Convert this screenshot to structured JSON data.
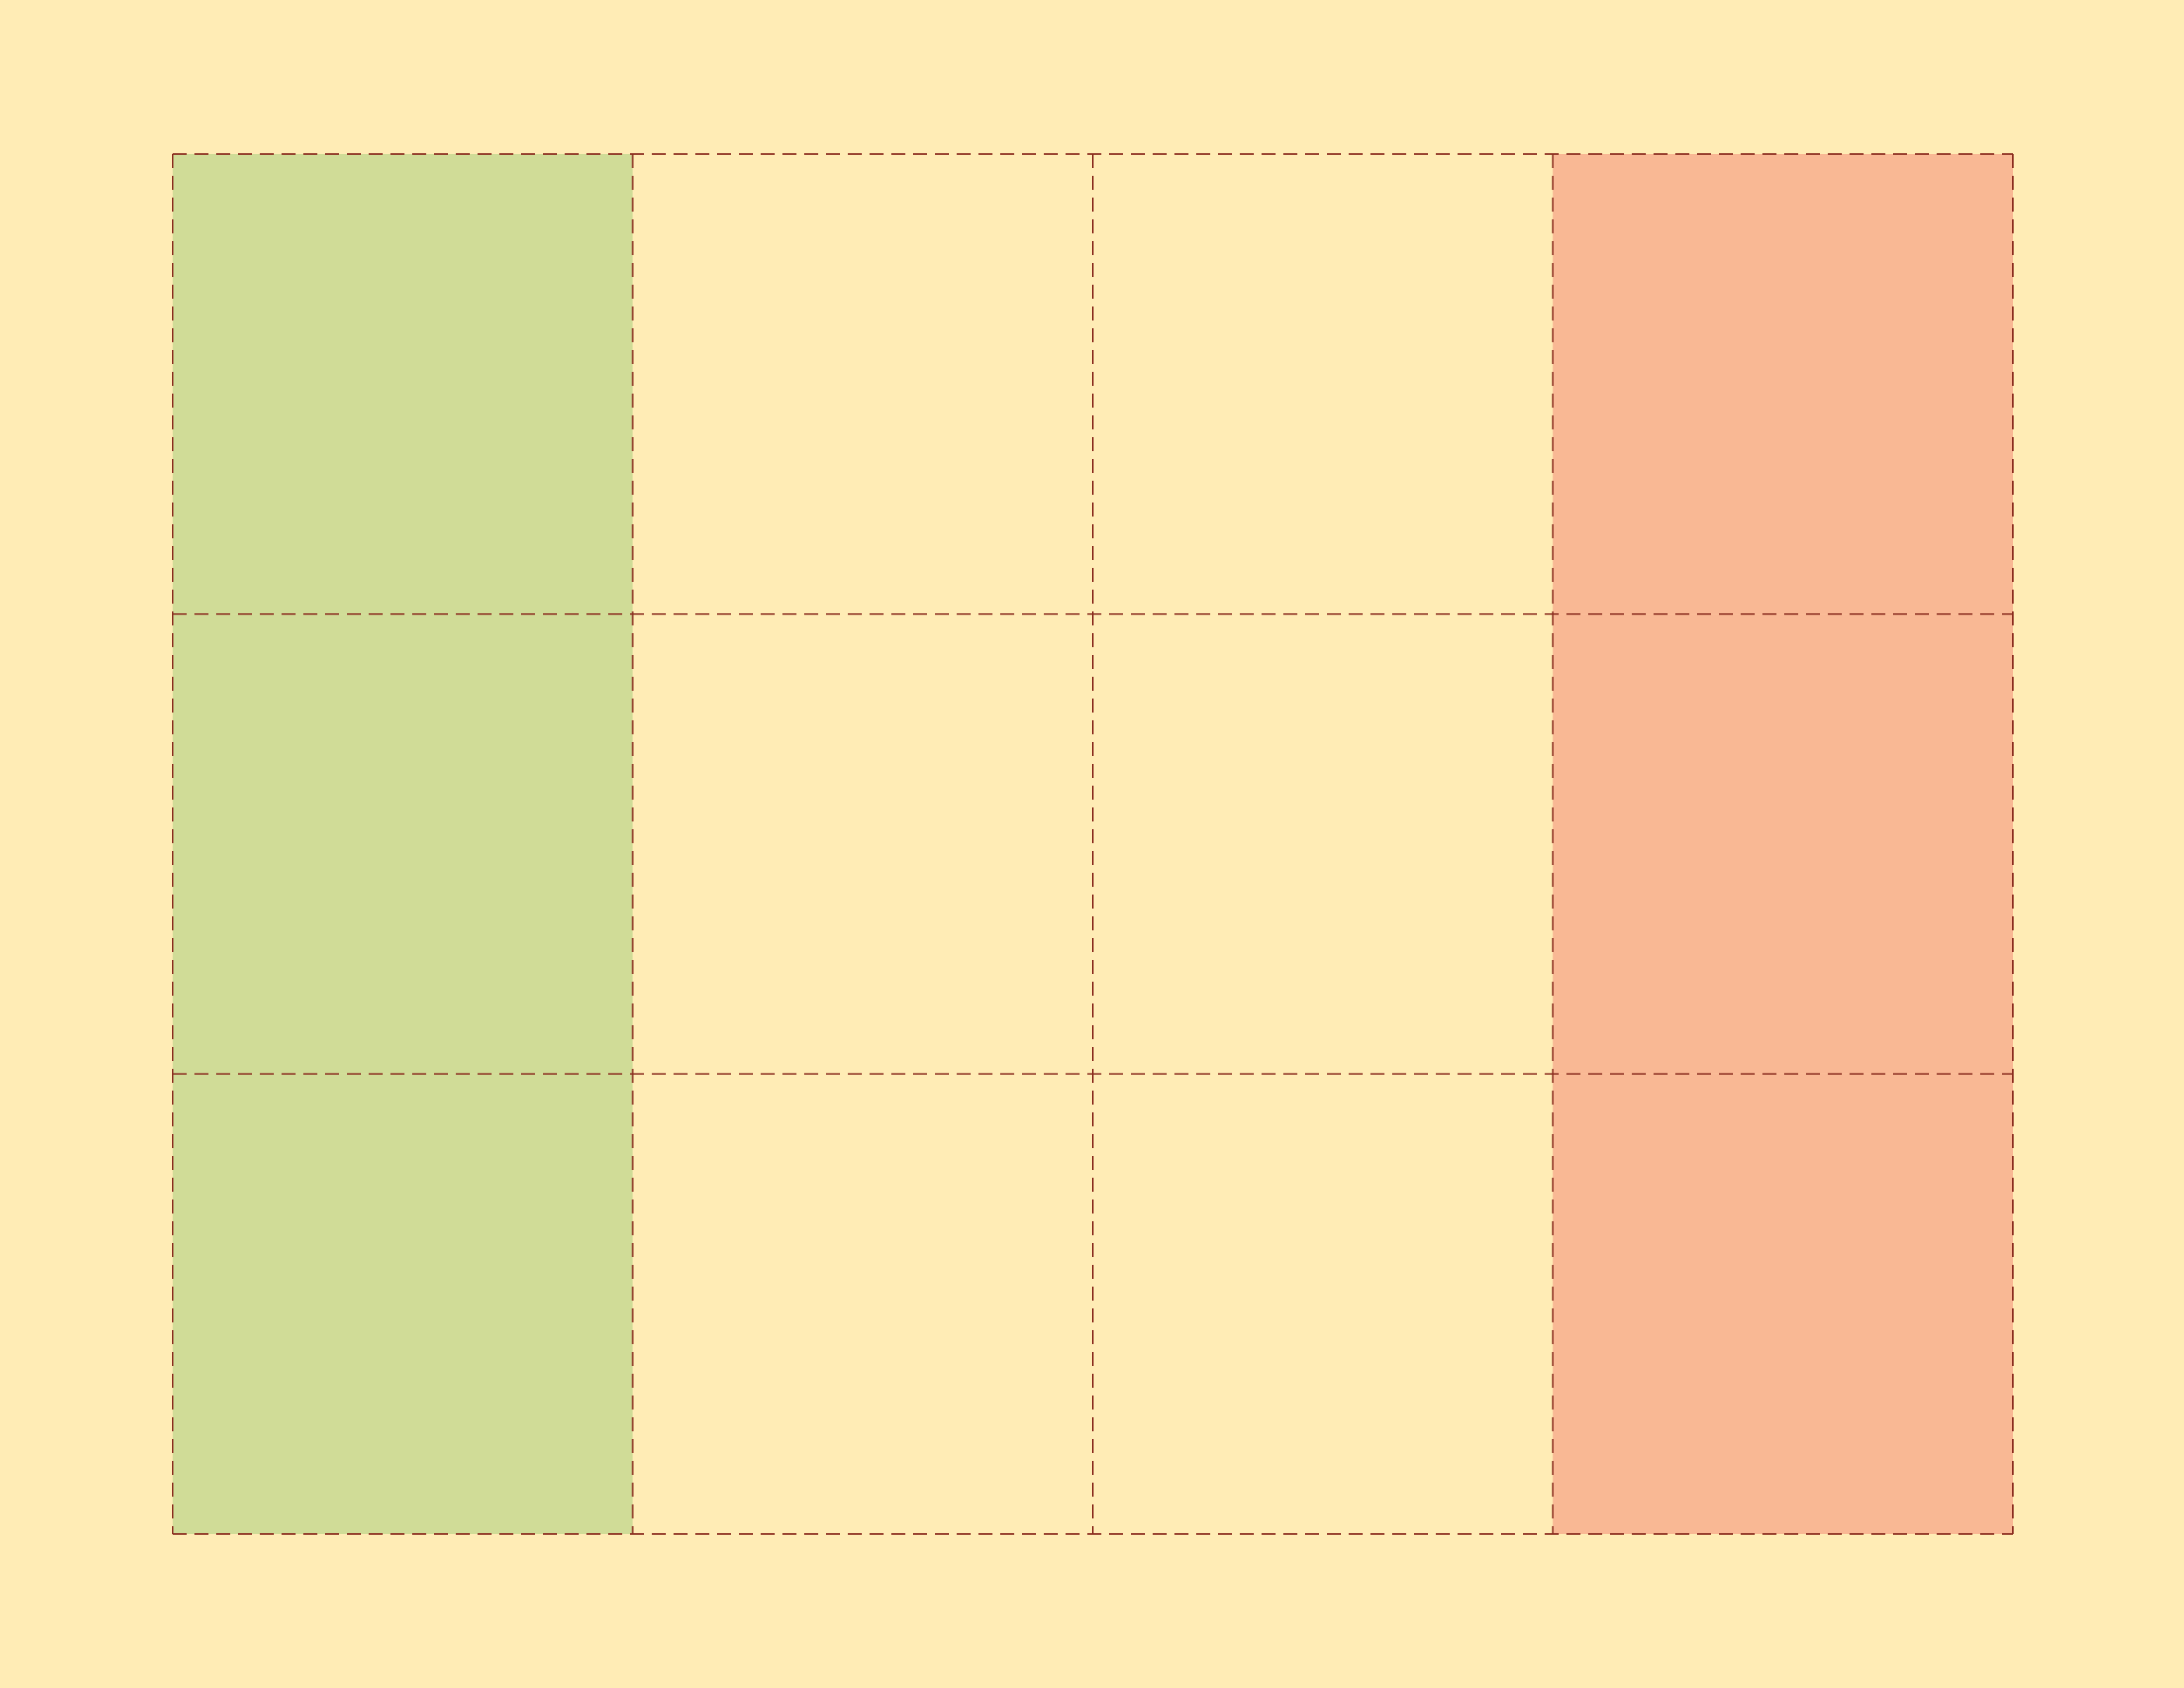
{
  "diagram": {
    "rows": 3,
    "columns": 4,
    "cells": [
      [
        "fill-green",
        "plain",
        "plain",
        "fill-salmon"
      ],
      [
        "fill-green",
        "plain",
        "plain",
        "fill-salmon"
      ],
      [
        "fill-green",
        "plain",
        "plain",
        "fill-salmon"
      ]
    ],
    "line_style": "dashed"
  },
  "colors": {
    "background": "#ffecb5",
    "fill-green": "#d0dc97",
    "fill-salmon": "#f9b894",
    "plain": "#ffecb5",
    "grid_line": "#8b2e20"
  }
}
